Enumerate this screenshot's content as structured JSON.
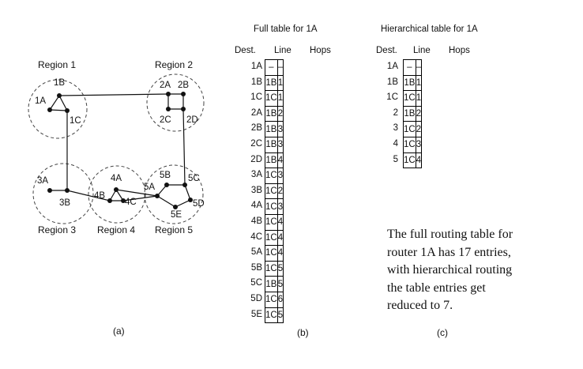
{
  "network": {
    "regions": [
      {
        "id": "r1",
        "label": "Region 1"
      },
      {
        "id": "r2",
        "label": "Region 2"
      },
      {
        "id": "r3",
        "label": "Region 3"
      },
      {
        "id": "r4",
        "label": "Region 4"
      },
      {
        "id": "r5",
        "label": "Region 5"
      }
    ],
    "routers": [
      "1A",
      "1B",
      "1C",
      "2A",
      "2B",
      "2C",
      "2D",
      "3A",
      "3B",
      "4A",
      "4B",
      "4C",
      "5A",
      "5B",
      "5C",
      "5D",
      "5E"
    ],
    "links": [
      [
        "1A",
        "1B"
      ],
      [
        "1A",
        "1C"
      ],
      [
        "1B",
        "1C"
      ],
      [
        "1B",
        "2A"
      ],
      [
        "1C",
        "3B"
      ],
      [
        "2A",
        "2B"
      ],
      [
        "2A",
        "2C"
      ],
      [
        "2B",
        "2D"
      ],
      [
        "2C",
        "2D"
      ],
      [
        "2D",
        "5C"
      ],
      [
        "3A",
        "3B"
      ],
      [
        "3B",
        "4B"
      ],
      [
        "4A",
        "4B"
      ],
      [
        "4A",
        "4C"
      ],
      [
        "4B",
        "4C"
      ],
      [
        "4A",
        "5A"
      ],
      [
        "4C",
        "5A"
      ],
      [
        "5A",
        "5B"
      ],
      [
        "5B",
        "5C"
      ],
      [
        "5C",
        "5D"
      ],
      [
        "5D",
        "5E"
      ],
      [
        "5E",
        "5A"
      ]
    ],
    "caption": "(a)"
  },
  "full_table": {
    "title": "Full table for 1A",
    "headers": {
      "dest": "Dest.",
      "line": "Line",
      "hops": "Hops"
    },
    "rows": [
      {
        "dest": "1A",
        "line": "–",
        "hops": "–"
      },
      {
        "dest": "1B",
        "line": "1B",
        "hops": "1"
      },
      {
        "dest": "1C",
        "line": "1C",
        "hops": "1"
      },
      {
        "dest": "2A",
        "line": "1B",
        "hops": "2"
      },
      {
        "dest": "2B",
        "line": "1B",
        "hops": "3"
      },
      {
        "dest": "2C",
        "line": "1B",
        "hops": "3"
      },
      {
        "dest": "2D",
        "line": "1B",
        "hops": "4"
      },
      {
        "dest": "3A",
        "line": "1C",
        "hops": "3"
      },
      {
        "dest": "3B",
        "line": "1C",
        "hops": "2"
      },
      {
        "dest": "4A",
        "line": "1C",
        "hops": "3"
      },
      {
        "dest": "4B",
        "line": "1C",
        "hops": "4"
      },
      {
        "dest": "4C",
        "line": "1C",
        "hops": "4"
      },
      {
        "dest": "5A",
        "line": "1C",
        "hops": "4"
      },
      {
        "dest": "5B",
        "line": "1C",
        "hops": "5"
      },
      {
        "dest": "5C",
        "line": "1B",
        "hops": "5"
      },
      {
        "dest": "5D",
        "line": "1C",
        "hops": "6"
      },
      {
        "dest": "5E",
        "line": "1C",
        "hops": "5"
      }
    ],
    "caption": "(b)"
  },
  "hier_table": {
    "title": "Hierarchical table for 1A",
    "headers": {
      "dest": "Dest.",
      "line": "Line",
      "hops": "Hops"
    },
    "rows": [
      {
        "dest": "1A",
        "line": "–",
        "hops": "–"
      },
      {
        "dest": "1B",
        "line": "1B",
        "hops": "1"
      },
      {
        "dest": "1C",
        "line": "1C",
        "hops": "1"
      },
      {
        "dest": "2",
        "line": "1B",
        "hops": "2"
      },
      {
        "dest": "3",
        "line": "1C",
        "hops": "2"
      },
      {
        "dest": "4",
        "line": "1C",
        "hops": "3"
      },
      {
        "dest": "5",
        "line": "1C",
        "hops": "4"
      }
    ],
    "caption": "(c)"
  },
  "note": {
    "lines": [
      "The full routing table for",
      "router 1A has 17 entries,",
      "with hierarchical routing",
      "the table entries get",
      "reduced to 7."
    ]
  }
}
